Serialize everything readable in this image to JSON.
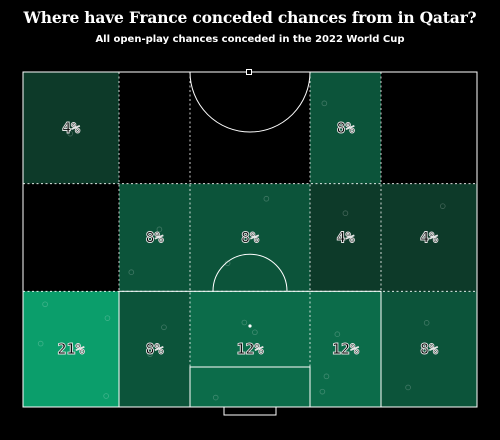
{
  "header": {
    "title": "Where have France conceded chances from in Qatar?",
    "subtitle": "All open-play chances conceded in the 2022 World Cup"
  },
  "colors": {
    "background": "#000000",
    "scale_low": "#0d1a14",
    "scale_high": "#0b9e6b",
    "lines": "#ffffff"
  },
  "chart_data": {
    "type": "heatmap",
    "title": "Where have France conceded chances from in Qatar?",
    "subtitle": "All open-play chances conceded in the 2022 World Cup",
    "unit": "% of open-play chances conceded",
    "grid": {
      "rows": 3,
      "cols": 5
    },
    "cells": [
      {
        "row": 0,
        "col": 0,
        "value": 4
      },
      {
        "row": 0,
        "col": 1,
        "value": 0
      },
      {
        "row": 0,
        "col": 2,
        "value": 0
      },
      {
        "row": 0,
        "col": 3,
        "value": 8
      },
      {
        "row": 0,
        "col": 4,
        "value": 0
      },
      {
        "row": 1,
        "col": 0,
        "value": 0
      },
      {
        "row": 1,
        "col": 1,
        "value": 8
      },
      {
        "row": 1,
        "col": 2,
        "value": 8
      },
      {
        "row": 1,
        "col": 3,
        "value": 4
      },
      {
        "row": 1,
        "col": 4,
        "value": 4
      },
      {
        "row": 2,
        "col": 0,
        "value": 21
      },
      {
        "row": 2,
        "col": 1,
        "value": 8
      },
      {
        "row": 2,
        "col": 2,
        "value": 12
      },
      {
        "row": 2,
        "col": 3,
        "value": 12
      },
      {
        "row": 2,
        "col": 4,
        "value": 8
      }
    ]
  }
}
